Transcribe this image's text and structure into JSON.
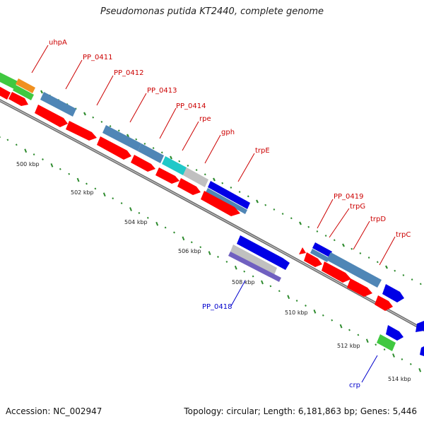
{
  "title": "Pseudomonas putida KT2440, complete genome",
  "footer": {
    "accession": "Accession: NC_002947",
    "topology": "Topology: circular; Length: 6,181,863 bp; Genes: 5,446"
  },
  "colors": {
    "cds": "#ff0000",
    "steel": "#4f86b6",
    "blue": "#0000e6",
    "green": "#40c840",
    "orange": "#f09020",
    "cyan": "#20c8c8",
    "gray": "#c0c0c0",
    "purple": "#7060c0",
    "tick": "#2e8b2e",
    "label_red": "#cc0000",
    "label_blue": "#0000cc"
  },
  "ticks": [
    "500 kbp",
    "502 kbp",
    "504 kbp",
    "506 kbp",
    "508 kbp",
    "510 kbp",
    "512 kbp",
    "514 kbp"
  ],
  "genes_top": [
    "uhpA",
    "PP_0411",
    "PP_0412",
    "PP_0413",
    "PP_0414",
    "rpe",
    "gph",
    "trpE",
    "PP_0419",
    "trpG",
    "trpD",
    "trpC"
  ],
  "genes_bottom": [
    "PP_0418",
    "crp"
  ]
}
